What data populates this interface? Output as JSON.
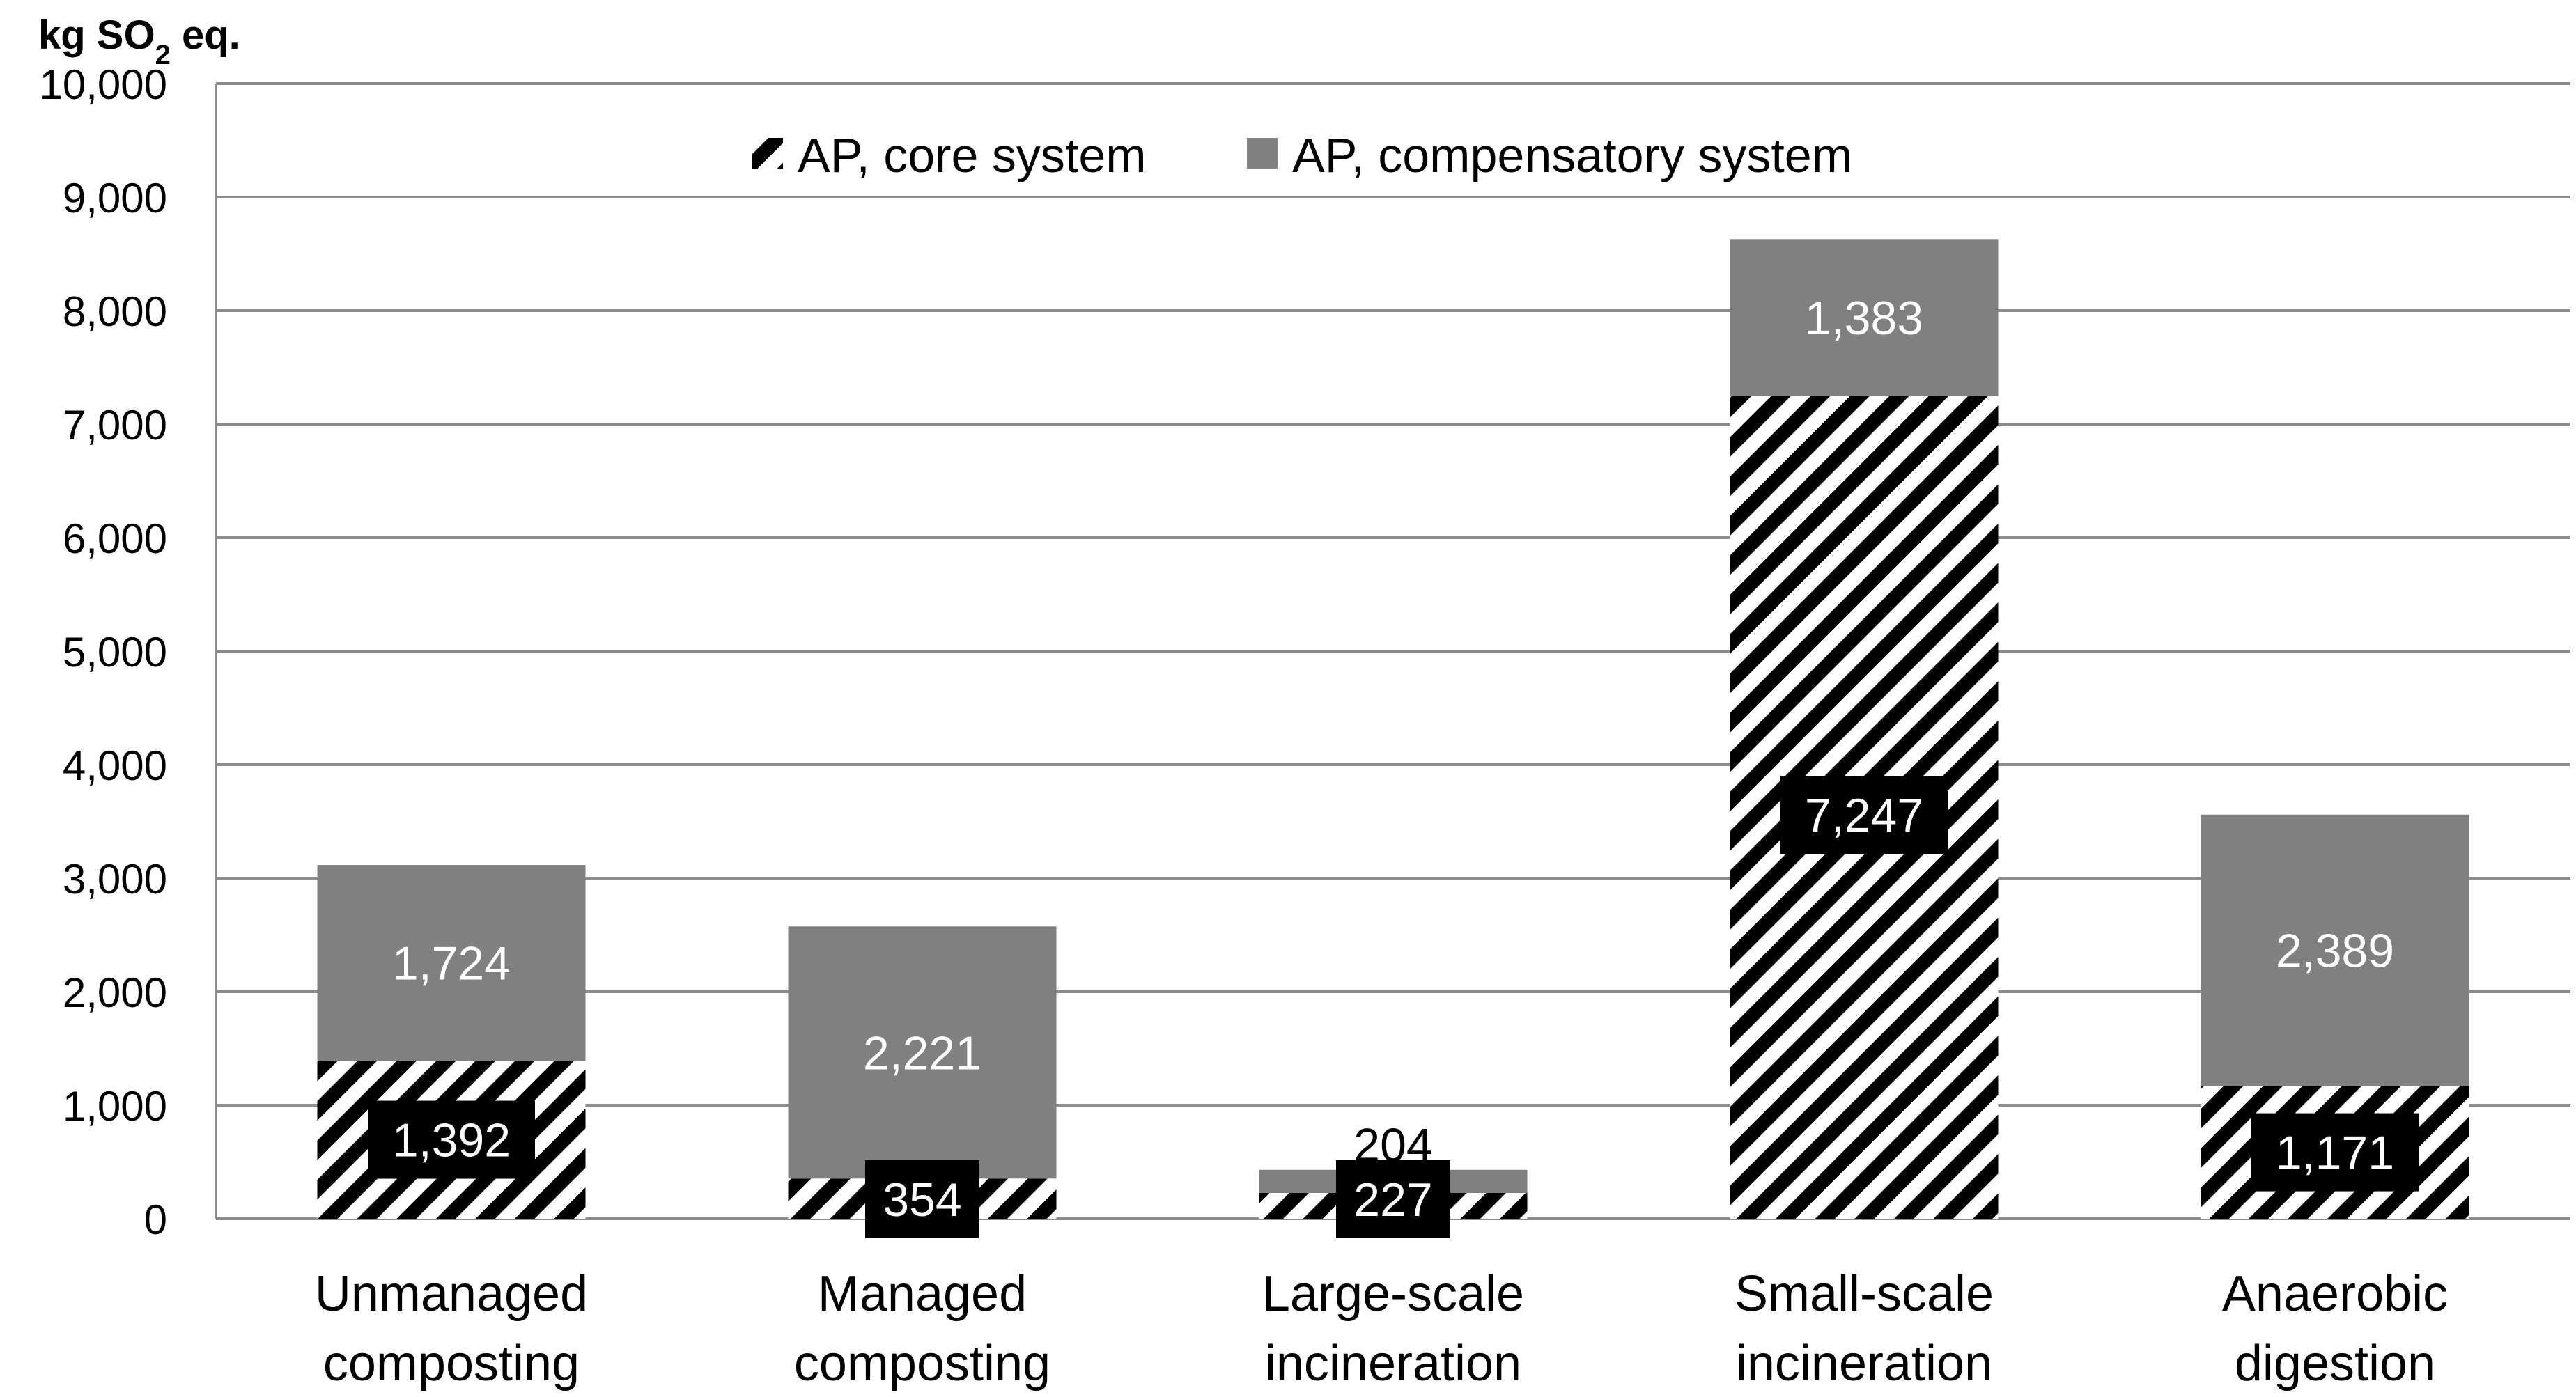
{
  "chart_data": {
    "type": "bar",
    "stacked": true,
    "ylabel": "kg SO",
    "ylabel_sub": "2",
    "ylabel_suffix": " eq.",
    "ylim": [
      0,
      10000
    ],
    "ytick_step": 1000,
    "ytick_labels": [
      "0",
      "1,000",
      "2,000",
      "3,000",
      "4,000",
      "5,000",
      "6,000",
      "7,000",
      "8,000",
      "9,000",
      "10,000"
    ],
    "categories": [
      [
        "Unmanaged",
        "composting"
      ],
      [
        "Managed",
        "composting"
      ],
      [
        "Large-scale",
        "incineration"
      ],
      [
        "Small-scale",
        "incineration"
      ],
      [
        "Anaerobic",
        "digestion"
      ]
    ],
    "series": [
      {
        "name": "AP, core system",
        "pattern": "hatched",
        "values": [
          1392,
          354,
          227,
          7247,
          1171
        ],
        "labels": [
          "1,392",
          "354",
          "227",
          "7,247",
          "1,171"
        ]
      },
      {
        "name": "AP, compensatory system",
        "pattern": "solid",
        "values": [
          1724,
          2221,
          204,
          1383,
          2389
        ],
        "labels": [
          "1,724",
          "2,221",
          "204",
          "1,383",
          "2,389"
        ]
      }
    ],
    "legend_position": "top-center",
    "grid": true,
    "colors": {
      "compensatory": "#808080",
      "core_stripe_dark": "#000000",
      "core_stripe_light": "#ffffff",
      "label_box": "#000000",
      "gridline": "#8c8c8c"
    }
  }
}
